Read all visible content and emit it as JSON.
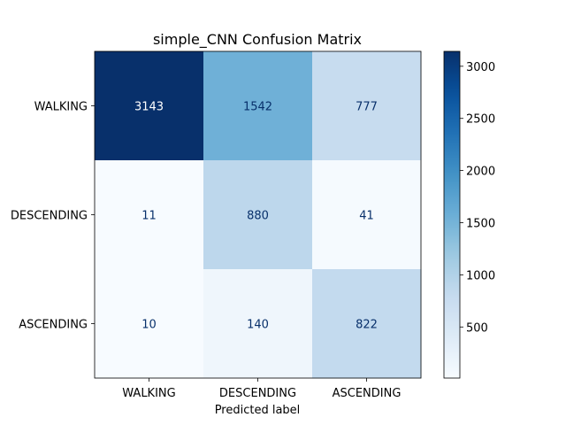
{
  "chart_data": {
    "type": "heatmap",
    "title": "simple_CNN Confusion Matrix",
    "xlabel": "Predicted label",
    "ylabel": "",
    "x_categories": [
      "WALKING",
      "DESCENDING",
      "ASCENDING"
    ],
    "y_categories": [
      "WALKING",
      "DESCENDING",
      "ASCENDING"
    ],
    "values": [
      [
        3143,
        1542,
        777
      ],
      [
        11,
        880,
        41
      ],
      [
        10,
        140,
        822
      ]
    ],
    "colormap": "Blues",
    "colorbar": {
      "min": 10,
      "max": 3143,
      "ticks": [
        500,
        1000,
        1500,
        2000,
        2500,
        3000
      ]
    }
  }
}
